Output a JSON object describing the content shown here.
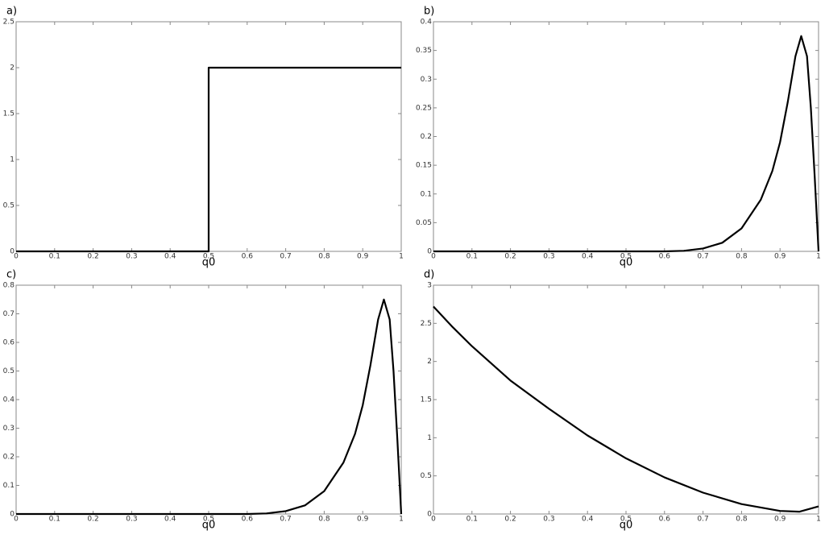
{
  "chart_data": [
    {
      "type": "line",
      "title": "a)",
      "x_label": "q0",
      "color": "#000000",
      "x": [
        0,
        0.5,
        0.5,
        1
      ],
      "values": [
        0,
        0,
        2,
        2
      ],
      "xlim": [
        0,
        1
      ],
      "xticks": [
        0,
        0.1,
        0.2,
        0.3,
        0.4,
        0.5,
        0.6,
        0.7,
        0.8,
        0.9,
        1
      ],
      "ylim": [
        0,
        2.5
      ],
      "yticks": [
        0,
        0.5,
        1,
        1.5,
        2,
        2.5
      ]
    },
    {
      "type": "line",
      "title": "b)",
      "x_label": "q0",
      "color": "#000000",
      "x": [
        0,
        0.6,
        0.65,
        0.7,
        0.75,
        0.8,
        0.85,
        0.88,
        0.9,
        0.92,
        0.94,
        0.955,
        0.97,
        0.98,
        0.99,
        1
      ],
      "values": [
        0,
        0,
        0.001,
        0.005,
        0.015,
        0.04,
        0.09,
        0.14,
        0.19,
        0.26,
        0.34,
        0.375,
        0.34,
        0.25,
        0.13,
        0
      ],
      "xlim": [
        0,
        1
      ],
      "xticks": [
        0,
        0.1,
        0.2,
        0.3,
        0.4,
        0.5,
        0.6,
        0.7,
        0.8,
        0.9,
        1
      ],
      "ylim": [
        0,
        0.4
      ],
      "yticks": [
        0,
        0.05,
        0.1,
        0.15,
        0.2,
        0.25,
        0.3,
        0.35,
        0.4
      ]
    },
    {
      "type": "line",
      "title": "c)",
      "x_label": "q0",
      "color": "#000000",
      "x": [
        0,
        0.6,
        0.65,
        0.7,
        0.75,
        0.8,
        0.85,
        0.88,
        0.9,
        0.92,
        0.94,
        0.955,
        0.97,
        0.98,
        0.99,
        1
      ],
      "values": [
        0,
        0,
        0.002,
        0.01,
        0.03,
        0.08,
        0.18,
        0.28,
        0.38,
        0.52,
        0.68,
        0.75,
        0.68,
        0.5,
        0.26,
        0
      ],
      "xlim": [
        0,
        1
      ],
      "xticks": [
        0,
        0.1,
        0.2,
        0.3,
        0.4,
        0.5,
        0.6,
        0.7,
        0.8,
        0.9,
        1
      ],
      "ylim": [
        0,
        0.8
      ],
      "yticks": [
        0,
        0.1,
        0.2,
        0.3,
        0.4,
        0.5,
        0.6,
        0.7,
        0.8
      ]
    },
    {
      "type": "line",
      "title": "d)",
      "x_label": "q0",
      "color": "#000000",
      "x": [
        0,
        0.05,
        0.1,
        0.2,
        0.3,
        0.4,
        0.5,
        0.6,
        0.7,
        0.8,
        0.9,
        0.95,
        1
      ],
      "values": [
        2.72,
        2.45,
        2.2,
        1.75,
        1.38,
        1.03,
        0.73,
        0.48,
        0.28,
        0.13,
        0.04,
        0.03,
        0.1
      ],
      "xlim": [
        0,
        1
      ],
      "xticks": [
        0,
        0.1,
        0.2,
        0.3,
        0.4,
        0.5,
        0.6,
        0.7,
        0.8,
        0.9,
        1
      ],
      "ylim": [
        0,
        3
      ],
      "yticks": [
        0,
        0.5,
        1,
        1.5,
        2,
        2.5,
        3
      ]
    }
  ]
}
